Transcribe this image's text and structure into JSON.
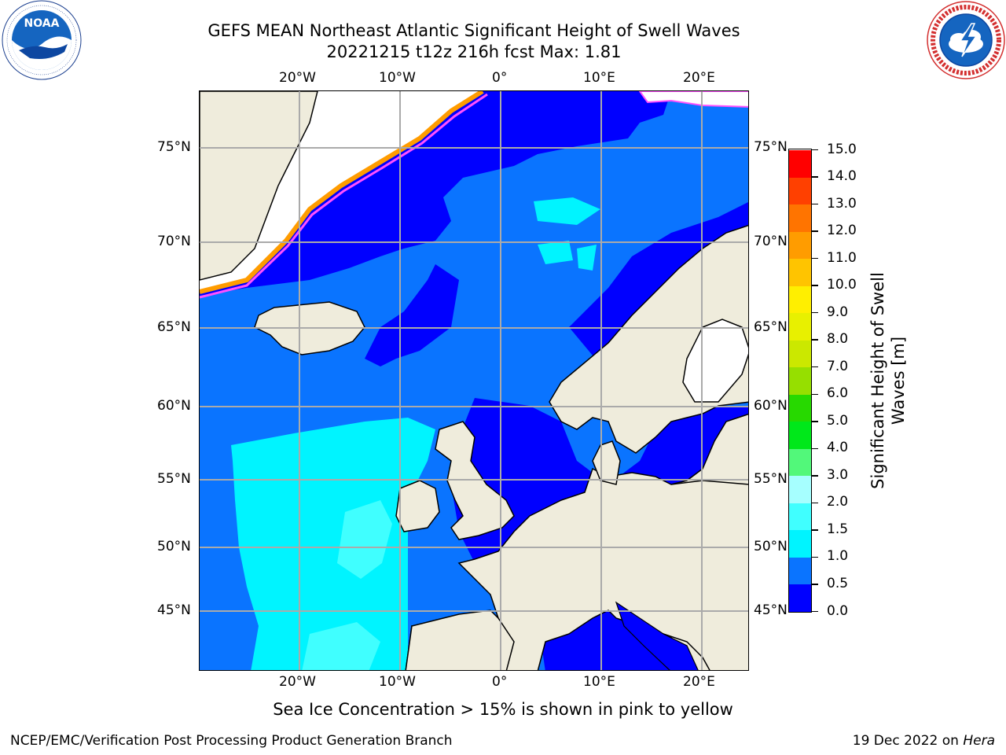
{
  "title": {
    "line1": "GEFS MEAN Northeast Atlantic Significant Height of Swell Waves",
    "line2": "20221215 t12z 216h fcst   Max: 1.81"
  },
  "logos": {
    "left": {
      "icon": "noaa-logo-icon",
      "text": "NOAA",
      "ring_text": "NATIONAL OCEANIC AND ATMOSPHERIC ADMINISTRATION · U.S. DEPARTMENT OF COMMERCE"
    },
    "right": {
      "icon": "national-weather-service-logo-icon",
      "ring_text": "NATIONAL WEATHER SERVICE"
    }
  },
  "map": {
    "lon_labels": [
      "20°W",
      "10°W",
      "0°",
      "10°E",
      "20°E"
    ],
    "lat_labels": [
      "75°N",
      "70°N",
      "65°N",
      "60°N",
      "55°N",
      "50°N",
      "45°N"
    ],
    "land_color": "#efecdc",
    "ice_ocean_color": "#ffffff"
  },
  "colorbar": {
    "title": "Significant Height of Swell Waves [m]",
    "ticks": [
      "0.0",
      "0.5",
      "1.0",
      "1.5",
      "2.0",
      "3.0",
      "4.0",
      "5.0",
      "6.0",
      "7.0",
      "8.0",
      "9.0",
      "10.0",
      "11.0",
      "12.0",
      "13.0",
      "14.0",
      "15.0"
    ],
    "colors": [
      "#0000ff",
      "#0a74ff",
      "#00f4ff",
      "#40ffff",
      "#a6ffff",
      "#52f87a",
      "#00e81a",
      "#27d900",
      "#96df00",
      "#cbe800",
      "#e8f000",
      "#ffef00",
      "#ffc400",
      "#ff9c00",
      "#ff7400",
      "#ff4000",
      "#ff0000"
    ]
  },
  "footer": {
    "note": "Sea Ice Concentration > 15% is shown in pink to yellow",
    "left": "NCEP/EMC/Verification Post Processing Product Generation Branch",
    "right_date": "19 Dec 2022 on ",
    "right_host": "Hera"
  }
}
